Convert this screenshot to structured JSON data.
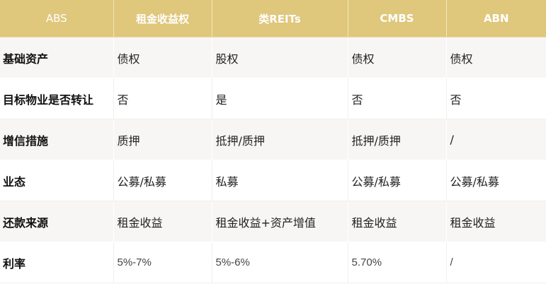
{
  "table": {
    "headers": [
      "ABS",
      "租金收益权",
      "类REITs",
      "CMBS",
      "ABN"
    ],
    "rows": [
      {
        "label": "基础资产",
        "cells": [
          "债权",
          "股权",
          "债权",
          "债权"
        ]
      },
      {
        "label": "目标物业是否转让",
        "cells": [
          "否",
          "是",
          "否",
          "否"
        ]
      },
      {
        "label": "增信措施",
        "cells": [
          "质押",
          "抵押/质押",
          "抵押/质押",
          "/"
        ]
      },
      {
        "label": "业态",
        "cells": [
          "公募/私募",
          "私募",
          "公募/私募",
          "公募/私募"
        ]
      },
      {
        "label": "还款来源",
        "cells": [
          "租金收益",
          "租金收益+资产增值",
          "租金收益",
          "租金收益"
        ]
      },
      {
        "label": "利率",
        "cells": [
          "5%-7%",
          "5%-6%",
          "5.70%",
          "/"
        ]
      }
    ]
  },
  "colors": {
    "header_bg": "#dfc77c",
    "header_text": "#ffffff",
    "stripe_bg": "#f7f6f4"
  }
}
